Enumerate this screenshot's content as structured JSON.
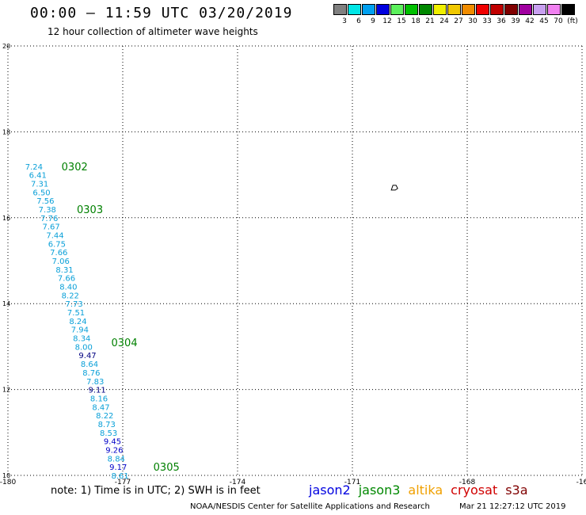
{
  "header": {
    "title": "00:00 – 11:59 UTC 03/20/2019",
    "subtitle": "12 hour collection of altimeter wave heights"
  },
  "legend": {
    "colors": [
      "#808080",
      "#00e5e5",
      "#00a0f0",
      "#0000e0",
      "#5cf05c",
      "#00c000",
      "#008800",
      "#f0f000",
      "#f0c800",
      "#f08c00",
      "#f00000",
      "#c00000",
      "#800000",
      "#a000a0",
      "#c8a0f0",
      "#f080f0",
      "#000000"
    ],
    "labels": [
      "3",
      "6",
      "9",
      "12",
      "15",
      "18",
      "21",
      "24",
      "27",
      "30",
      "33",
      "36",
      "39",
      "42",
      "45",
      "70",
      "(ft)"
    ]
  },
  "axes": {
    "x_ticks": [
      "-180",
      "-177",
      "-174",
      "-171",
      "-168",
      "-16"
    ],
    "y_ticks": [
      "20",
      "18",
      "16",
      "14",
      "12",
      "10"
    ]
  },
  "colors": {
    "lightblue": "#0aa0d8",
    "darkblue": "#0000c8",
    "navy": "#000080",
    "time_label": "#008000"
  },
  "time_labels": [
    {
      "text": "0302",
      "lon": -178.6,
      "lat": 17.2
    },
    {
      "text": "0303",
      "lon": -178.2,
      "lat": 16.2
    },
    {
      "text": "0304",
      "lon": -177.3,
      "lat": 13.1
    },
    {
      "text": "0305",
      "lon": -176.2,
      "lat": 10.2
    }
  ],
  "island_marker": {
    "lon": -169.9,
    "lat": 16.7
  },
  "wave_heights": [
    {
      "v": "7.24",
      "lon": -179.55,
      "lat": 17.2,
      "c": "lightblue"
    },
    {
      "v": "6.41",
      "lon": -179.45,
      "lat": 17.0,
      "c": "lightblue"
    },
    {
      "v": "7.31",
      "lon": -179.4,
      "lat": 16.8,
      "c": "lightblue"
    },
    {
      "v": "6.50",
      "lon": -179.35,
      "lat": 16.6,
      "c": "lightblue"
    },
    {
      "v": "7.56",
      "lon": -179.25,
      "lat": 16.4,
      "c": "lightblue"
    },
    {
      "v": "7.38",
      "lon": -179.2,
      "lat": 16.2,
      "c": "lightblue"
    },
    {
      "v": "7.76",
      "lon": -179.15,
      "lat": 16.0,
      "c": "lightblue"
    },
    {
      "v": "7.67",
      "lon": -179.1,
      "lat": 15.8,
      "c": "lightblue"
    },
    {
      "v": "7.44",
      "lon": -179.0,
      "lat": 15.6,
      "c": "lightblue"
    },
    {
      "v": "6.75",
      "lon": -178.95,
      "lat": 15.4,
      "c": "lightblue"
    },
    {
      "v": "7.66",
      "lon": -178.9,
      "lat": 15.2,
      "c": "lightblue"
    },
    {
      "v": "7.06",
      "lon": -178.85,
      "lat": 15.0,
      "c": "lightblue"
    },
    {
      "v": "8.31",
      "lon": -178.75,
      "lat": 14.8,
      "c": "lightblue"
    },
    {
      "v": "7.66",
      "lon": -178.7,
      "lat": 14.6,
      "c": "lightblue"
    },
    {
      "v": "8.40",
      "lon": -178.65,
      "lat": 14.4,
      "c": "lightblue"
    },
    {
      "v": "8.22",
      "lon": -178.6,
      "lat": 14.2,
      "c": "lightblue"
    },
    {
      "v": "7.73",
      "lon": -178.5,
      "lat": 14.0,
      "c": "lightblue"
    },
    {
      "v": "7.51",
      "lon": -178.45,
      "lat": 13.8,
      "c": "lightblue"
    },
    {
      "v": "8.24",
      "lon": -178.4,
      "lat": 13.6,
      "c": "lightblue"
    },
    {
      "v": "7.94",
      "lon": -178.35,
      "lat": 13.4,
      "c": "lightblue"
    },
    {
      "v": "8.34",
      "lon": -178.3,
      "lat": 13.2,
      "c": "lightblue"
    },
    {
      "v": "8.00",
      "lon": -178.25,
      "lat": 13.0,
      "c": "lightblue"
    },
    {
      "v": "9.47",
      "lon": -178.15,
      "lat": 12.8,
      "c": "navy"
    },
    {
      "v": "8.64",
      "lon": -178.1,
      "lat": 12.6,
      "c": "lightblue"
    },
    {
      "v": "8.76",
      "lon": -178.05,
      "lat": 12.4,
      "c": "lightblue"
    },
    {
      "v": "7.83",
      "lon": -177.95,
      "lat": 12.2,
      "c": "lightblue"
    },
    {
      "v": "9.11",
      "lon": -177.9,
      "lat": 12.0,
      "c": "navy"
    },
    {
      "v": "8.16",
      "lon": -177.85,
      "lat": 11.8,
      "c": "lightblue"
    },
    {
      "v": "8.47",
      "lon": -177.8,
      "lat": 11.6,
      "c": "lightblue"
    },
    {
      "v": "8.22",
      "lon": -177.7,
      "lat": 11.4,
      "c": "lightblue"
    },
    {
      "v": "8.73",
      "lon": -177.65,
      "lat": 11.2,
      "c": "lightblue"
    },
    {
      "v": "8.53",
      "lon": -177.6,
      "lat": 11.0,
      "c": "lightblue"
    },
    {
      "v": "9.45",
      "lon": -177.5,
      "lat": 10.8,
      "c": "darkblue"
    },
    {
      "v": "9.26",
      "lon": -177.45,
      "lat": 10.6,
      "c": "darkblue"
    },
    {
      "v": "8.84",
      "lon": -177.4,
      "lat": 10.4,
      "c": "lightblue"
    },
    {
      "v": "9.17",
      "lon": -177.35,
      "lat": 10.2,
      "c": "darkblue"
    },
    {
      "v": "8.61",
      "lon": -177.3,
      "lat": 10.0,
      "c": "lightblue"
    }
  ],
  "footer": {
    "note": "note:  1) Time is in UTC;  2) SWH is in feet",
    "satellites": [
      {
        "name": "jason2",
        "color": "#0000e0"
      },
      {
        "name": "jason3",
        "color": "#008800"
      },
      {
        "name": "altika",
        "color": "#f0a000"
      },
      {
        "name": "cryosat",
        "color": "#d00000"
      },
      {
        "name": "s3a",
        "color": "#800000"
      }
    ],
    "credit": "NOAA/NESDIS Center for Satellite Applications and Research",
    "timestamp": "Mar 21 12:27:12 UTC 2019"
  }
}
